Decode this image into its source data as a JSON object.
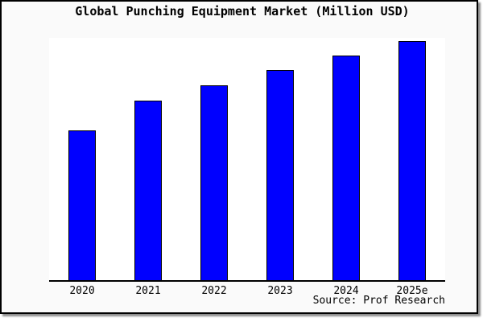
{
  "window": {
    "title": "Global Punching Equipment Market (Million USD)"
  },
  "chart_data": {
    "type": "bar",
    "title": "Global Punching Equipment Market (Million USD)",
    "categories": [
      "2020",
      "2021",
      "2022",
      "2023",
      "2024",
      "2025e"
    ],
    "values": [
      186,
      223,
      242,
      261,
      279,
      297
    ],
    "value_scale": "relative bar heights (y-axis has no tick labels or gridlines)",
    "xlabel": "",
    "ylabel": "",
    "ylim": [
      0,
      301
    ],
    "grid": false,
    "legend": false,
    "source": "Source: Prof Research",
    "colors": {
      "bar_fill": "#0000ff",
      "bar_border": "#000000",
      "plot_background": "#ffffff",
      "canvas_background": "#fafafa",
      "frame_border": "#000000",
      "text": "#000000"
    }
  }
}
